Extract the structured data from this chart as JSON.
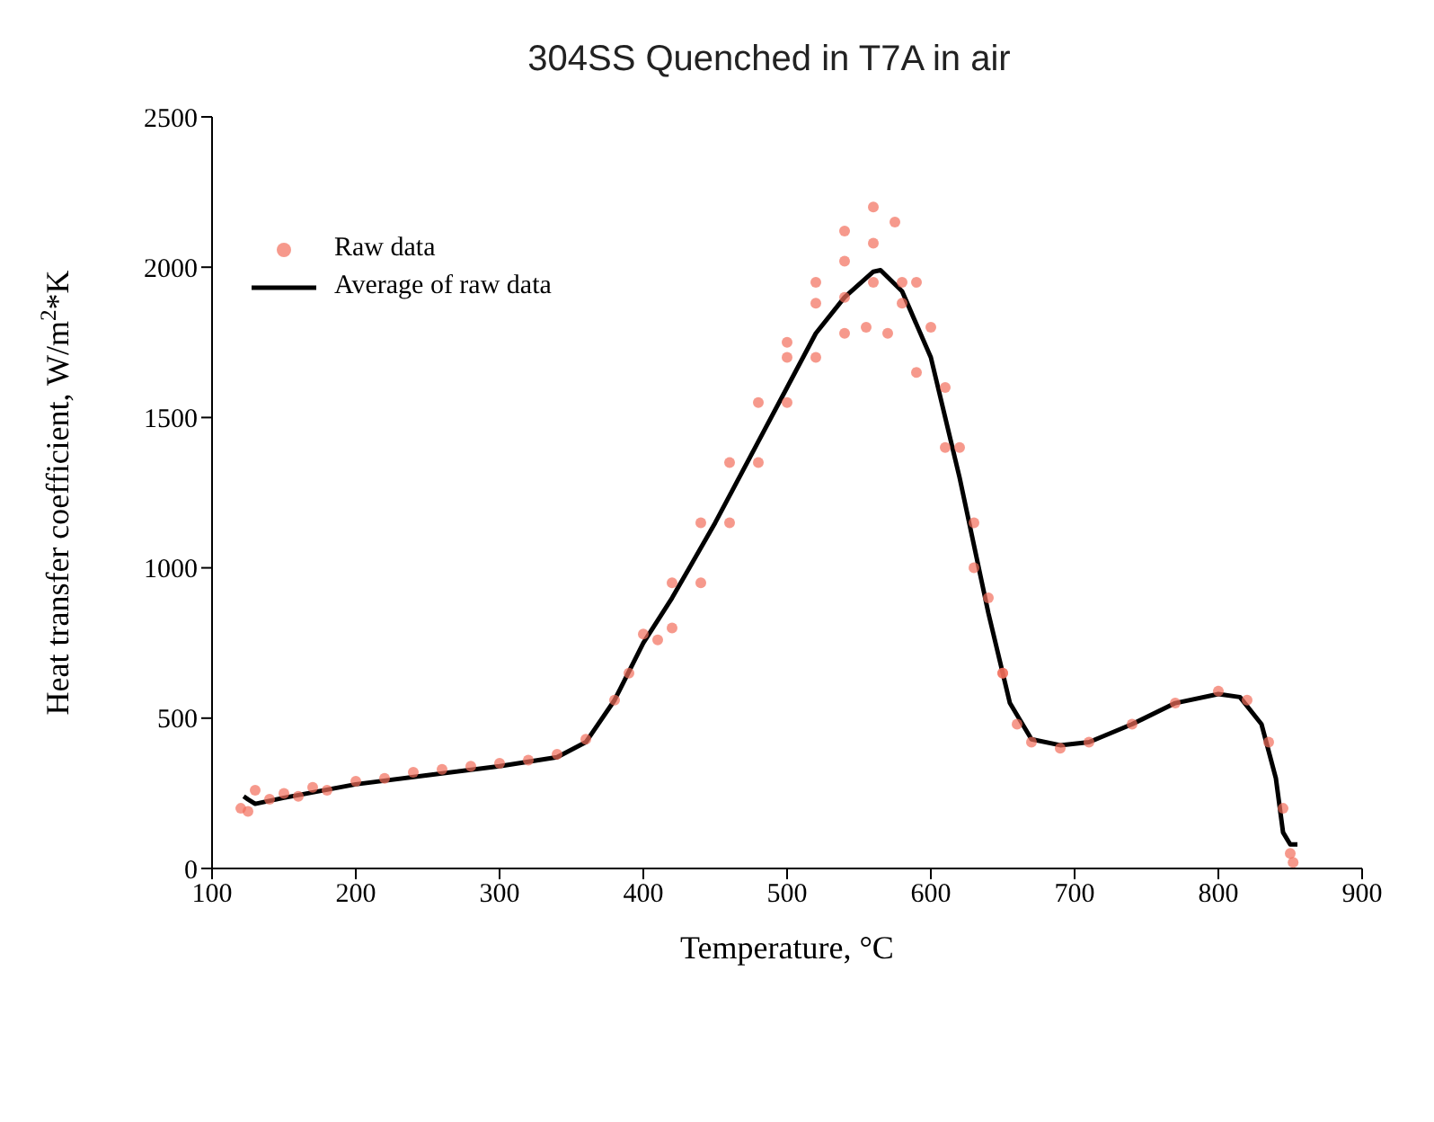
{
  "chart_data": {
    "type": "line",
    "title": "304SS Quenched in T7A in air",
    "xlabel": "Temperature, °C",
    "ylabel": "Heat transfer coefficient, W/m$^{2}$*K",
    "xlim": [
      100,
      900
    ],
    "xticks": [
      100,
      200,
      300,
      400,
      500,
      600,
      700,
      800,
      900
    ],
    "ylim": [
      0,
      2500
    ],
    "yticks": [
      0,
      500,
      1000,
      1500,
      2000,
      2500
    ],
    "grid": false,
    "legend": "top left",
    "series": [
      {
        "name": "Raw data",
        "type": "scatter",
        "marker": "circle",
        "color": "#f26d5b",
        "x": [
          120,
          125,
          130,
          140,
          150,
          160,
          170,
          180,
          200,
          220,
          240,
          260,
          280,
          300,
          320,
          340,
          360,
          380,
          390,
          400,
          410,
          420,
          440,
          460,
          480,
          500,
          520,
          540,
          560,
          575,
          590,
          600,
          610,
          620,
          630,
          640,
          650,
          500,
          520,
          540,
          560,
          580,
          540,
          560,
          580,
          420,
          440,
          460,
          480,
          500,
          520,
          540,
          555,
          570,
          590,
          610,
          630,
          650,
          660,
          670,
          690,
          710,
          740,
          770,
          800,
          820,
          835,
          845,
          850,
          852
        ],
        "values": [
          200,
          190,
          260,
          230,
          250,
          240,
          270,
          260,
          290,
          300,
          320,
          330,
          340,
          350,
          360,
          380,
          430,
          560,
          650,
          780,
          760,
          950,
          1150,
          1350,
          1550,
          1750,
          1950,
          2120,
          2200,
          2150,
          1950,
          1800,
          1600,
          1400,
          1150,
          900,
          650,
          1700,
          1880,
          2020,
          2080,
          1950,
          1900,
          1950,
          1880,
          800,
          950,
          1150,
          1350,
          1550,
          1700,
          1780,
          1800,
          1780,
          1650,
          1400,
          1000,
          650,
          480,
          420,
          400,
          420,
          480,
          550,
          590,
          560,
          420,
          200,
          50,
          20
        ]
      },
      {
        "name": "Average of raw data",
        "marker": "none",
        "line_style": "solid",
        "color": "#000000",
        "x": [
          122,
          125,
          130,
          150,
          200,
          250,
          300,
          340,
          360,
          380,
          400,
          420,
          450,
          480,
          500,
          520,
          540,
          560,
          565,
          580,
          600,
          620,
          640,
          655,
          670,
          690,
          710,
          740,
          770,
          800,
          815,
          830,
          840,
          845,
          850,
          855
        ],
        "values": [
          240,
          230,
          215,
          235,
          280,
          310,
          340,
          370,
          420,
          560,
          750,
          900,
          1150,
          1420,
          1600,
          1780,
          1900,
          1985,
          1990,
          1920,
          1700,
          1300,
          850,
          550,
          430,
          410,
          420,
          480,
          550,
          580,
          570,
          480,
          300,
          120,
          80,
          80
        ]
      }
    ]
  }
}
